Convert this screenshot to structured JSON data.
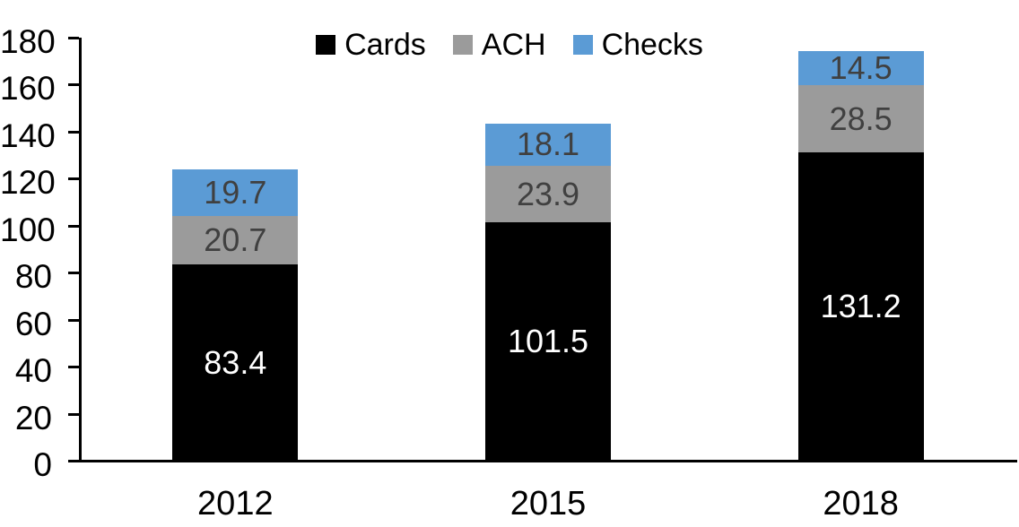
{
  "chart_data": {
    "type": "bar",
    "stacked": true,
    "title": "",
    "xlabel": "",
    "ylabel": "",
    "categories": [
      "2012",
      "2015",
      "2018"
    ],
    "series": [
      {
        "name": "Cards",
        "color": "#000000",
        "label_color": "#FFFFFF",
        "values": [
          83.4,
          101.5,
          131.2
        ]
      },
      {
        "name": "ACH",
        "color": "#9B9B9B",
        "label_color": "#404040",
        "values": [
          20.7,
          23.9,
          28.5
        ]
      },
      {
        "name": "Checks",
        "color": "#5B9BD5",
        "label_color": "#404040",
        "values": [
          19.7,
          18.1,
          14.5
        ]
      }
    ],
    "totals": [
      123.8,
      143.5,
      174.2
    ],
    "ylim": [
      0,
      180
    ],
    "yticks": [
      0,
      20,
      40,
      60,
      80,
      100,
      120,
      140,
      160,
      180
    ],
    "grid": false,
    "legend_position": "top-center",
    "axis_color": "#000000",
    "background_color": "#FFFFFF"
  }
}
